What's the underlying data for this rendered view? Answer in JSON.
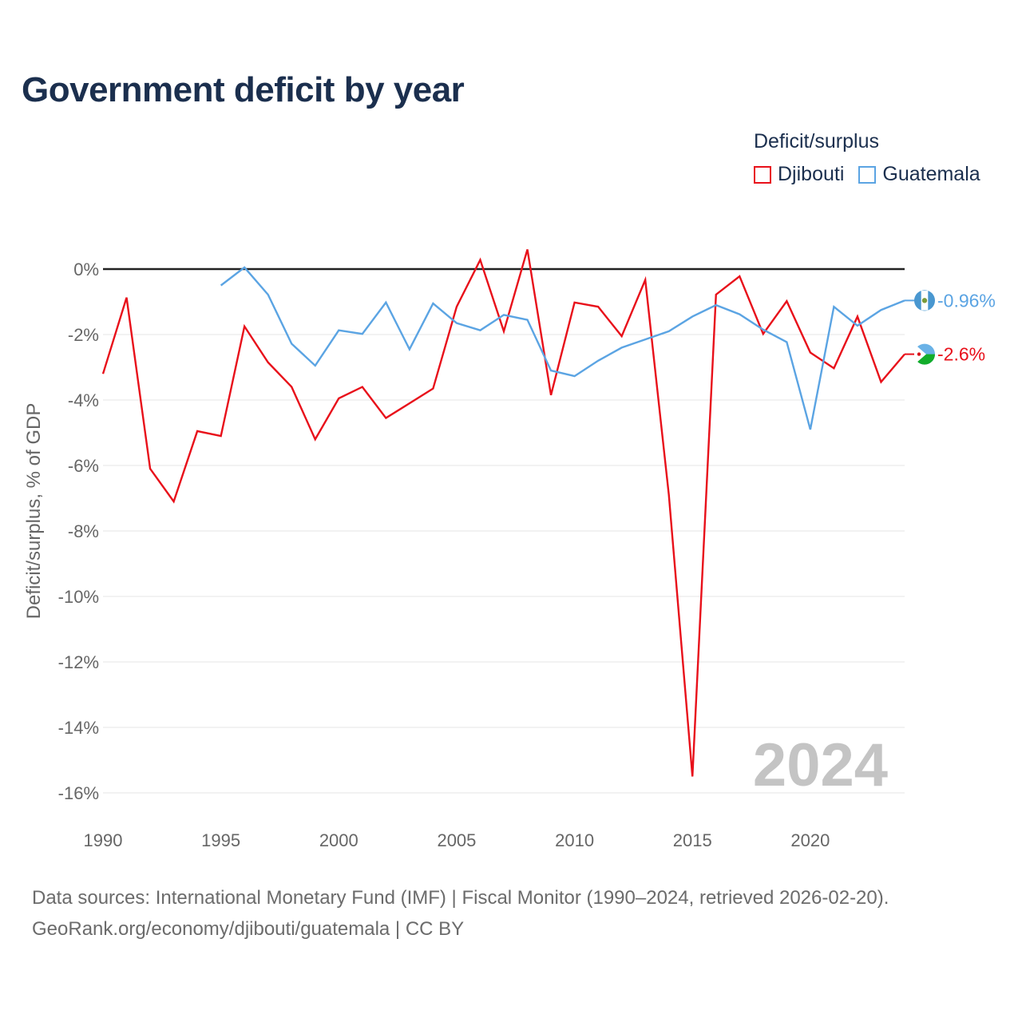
{
  "title": "Government deficit by year",
  "legend_title": "Deficit/surplus",
  "colors": {
    "djibouti": "#e8101a",
    "guatemala": "#5ba4e3",
    "zero_line": "#222222",
    "grid": "#e6e6e6",
    "axis_text": "#666666",
    "year_watermark": "#c4c4c4",
    "title": "#1b2f4e"
  },
  "footer": {
    "line1": "Data sources: International Monetary Fund (IMF) | Fiscal Monitor (1990–2024, retrieved 2026-02-20).",
    "line2": "GeoRank.org/economy/djibouti/guatemala | CC BY"
  },
  "chart_data": {
    "type": "line",
    "title": "Government deficit by year",
    "xlabel": "",
    "ylabel": "Deficit/surplus, % of GDP",
    "xlim": [
      1990,
      2024
    ],
    "ylim": [
      -16,
      0
    ],
    "grid": true,
    "legend_position": "top-right",
    "x_ticks": [
      1990,
      1995,
      2000,
      2005,
      2010,
      2015,
      2020
    ],
    "x_tick_labels": [
      "1990",
      "1995",
      "2000",
      "2005",
      "2010",
      "2015",
      "2020"
    ],
    "y_ticks": [
      0,
      -2,
      -4,
      -6,
      -8,
      -10,
      -12,
      -14,
      -16
    ],
    "y_tick_labels": [
      "0%",
      "-2%",
      "-4%",
      "-6%",
      "-8%",
      "-10%",
      "-12%",
      "-14%",
      "-16%"
    ],
    "watermark_year": "2024",
    "series": [
      {
        "name": "Djibouti",
        "key": "djibouti",
        "end_label": "-2.6%",
        "x": [
          1990,
          1991,
          1992,
          1993,
          1994,
          1995,
          1996,
          1997,
          1998,
          1999,
          2000,
          2001,
          2002,
          2003,
          2004,
          2005,
          2006,
          2007,
          2008,
          2009,
          2010,
          2011,
          2012,
          2013,
          2014,
          2015,
          2016,
          2017,
          2018,
          2019,
          2020,
          2021,
          2022,
          2023,
          2024
        ],
        "values": [
          -3.2,
          -0.87,
          -6.1,
          -7.1,
          -4.95,
          -5.1,
          -1.75,
          -2.85,
          -3.6,
          -5.2,
          -3.95,
          -3.6,
          -4.55,
          -4.1,
          -3.65,
          -1.15,
          0.28,
          -1.9,
          0.6,
          -3.85,
          -1.02,
          -1.15,
          -2.05,
          -0.33,
          -6.9,
          -15.5,
          -0.78,
          -0.22,
          -1.98,
          -0.98,
          -2.55,
          -3.03,
          -1.45,
          -3.45,
          -2.6
        ]
      },
      {
        "name": "Guatemala",
        "key": "guatemala",
        "end_label": "-0.96%",
        "x": [
          1995,
          1996,
          1997,
          1998,
          1999,
          2000,
          2001,
          2002,
          2003,
          2004,
          2005,
          2006,
          2007,
          2008,
          2009,
          2010,
          2011,
          2012,
          2013,
          2014,
          2015,
          2016,
          2017,
          2018,
          2019,
          2020,
          2021,
          2022,
          2023,
          2024
        ],
        "values": [
          -0.5,
          0.05,
          -0.78,
          -2.28,
          -2.95,
          -1.87,
          -1.98,
          -1.02,
          -2.45,
          -1.05,
          -1.65,
          -1.87,
          -1.4,
          -1.55,
          -3.1,
          -3.27,
          -2.8,
          -2.4,
          -2.15,
          -1.9,
          -1.45,
          -1.1,
          -1.38,
          -1.85,
          -2.23,
          -4.9,
          -1.15,
          -1.73,
          -1.25,
          -0.96
        ]
      }
    ]
  }
}
